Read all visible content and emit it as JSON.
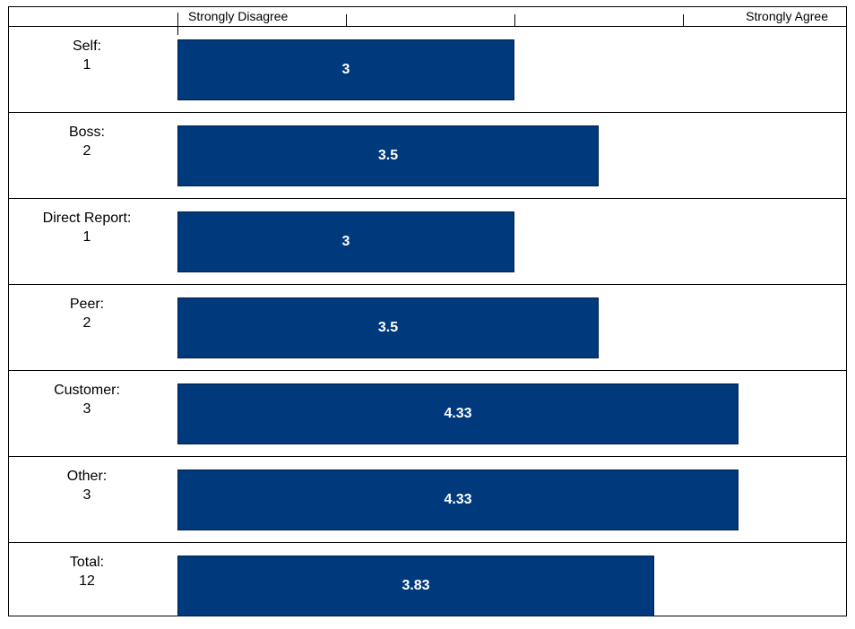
{
  "chart_data": {
    "type": "bar",
    "orientation": "horizontal",
    "scale": {
      "min": 1,
      "max": 5,
      "low_label": "Strongly Disagree",
      "high_label": "Strongly Agree"
    },
    "categories": [
      "Self:",
      "Boss:",
      "Direct Report:",
      "Peer:",
      "Customer:",
      "Other:",
      "Total:"
    ],
    "counts": [
      "1",
      "2",
      "1",
      "2",
      "3",
      "3",
      "12"
    ],
    "values": [
      3,
      3.5,
      3,
      3.5,
      4.33,
      4.33,
      3.83
    ],
    "value_labels": [
      "3",
      "3.5",
      "3",
      "3.5",
      "4.33",
      "4.33",
      "3.83"
    ],
    "bar_color": "#003a7d"
  }
}
